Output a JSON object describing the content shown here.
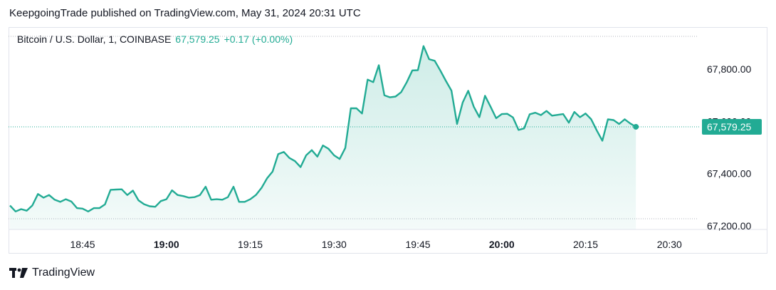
{
  "published_line": "KeepgoingTrade published on TradingView.com, May 31, 2024 20:31 UTC",
  "legend": {
    "symbol": "Bitcoin / U.S. Dollar, 1, COINBASE",
    "last": "67,579.25",
    "change": "+0.17 (+0.00%)"
  },
  "brand": {
    "name": "TradingView",
    "icon": "tradingview-logo-icon"
  },
  "colors": {
    "line": "#22ab94",
    "fill_top": "#cdeee7",
    "label_bg": "#22ab94",
    "text": "#131722"
  },
  "chart_data": {
    "type": "area",
    "x_unit": "minutes since 18:32 UTC, 1-minute bars",
    "x_start": "18:32",
    "ylim": [
      67180,
      67920
    ],
    "yticks": [
      67200,
      67400,
      67600,
      67800
    ],
    "ytick_labels": [
      "67,200.00",
      "67,400.00",
      "67,600.00",
      "67,800.00"
    ],
    "xticks": [
      {
        "label": "18:45",
        "t": 13,
        "bold": false
      },
      {
        "label": "19:00",
        "t": 28,
        "bold": true
      },
      {
        "label": "19:15",
        "t": 43,
        "bold": false
      },
      {
        "label": "19:30",
        "t": 58,
        "bold": false
      },
      {
        "label": "19:45",
        "t": 73,
        "bold": false
      },
      {
        "label": "20:00",
        "t": 88,
        "bold": true
      },
      {
        "label": "20:15",
        "t": 103,
        "bold": false
      },
      {
        "label": "20:30",
        "t": 118,
        "bold": false
      }
    ],
    "last_value": 67579.25,
    "last_label": "67,579.25",
    "values": [
      67278,
      67255,
      67264,
      67258,
      67278,
      67322,
      67308,
      67318,
      67300,
      67292,
      67302,
      67293,
      67268,
      67266,
      67255,
      67268,
      67268,
      67282,
      67338,
      67339,
      67340,
      67318,
      67335,
      67298,
      67283,
      67275,
      67273,
      67295,
      67302,
      67336,
      67318,
      67314,
      67308,
      67310,
      67318,
      67350,
      67300,
      67302,
      67300,
      67310,
      67350,
      67292,
      67292,
      67302,
      67318,
      67345,
      67382,
      67408,
      67475,
      67483,
      67460,
      67448,
      67425,
      67470,
      67490,
      67465,
      67508,
      67495,
      67470,
      67456,
      67498,
      67650,
      67650,
      67630,
      67760,
      67750,
      67815,
      67700,
      67692,
      67695,
      67712,
      67750,
      67795,
      67796,
      67888,
      67838,
      67832,
      67795,
      67755,
      67718,
      67590,
      67672,
      67717,
      67656,
      67616,
      67698,
      67656,
      67612,
      67628,
      67629,
      67615,
      67567,
      67573,
      67627,
      67633,
      67624,
      67640,
      67622,
      67625,
      67628,
      67595,
      67636,
      67616,
      67630,
      67608,
      67565,
      67526,
      67608,
      67605,
      67590,
      67608,
      67592,
      67579.25
    ]
  }
}
